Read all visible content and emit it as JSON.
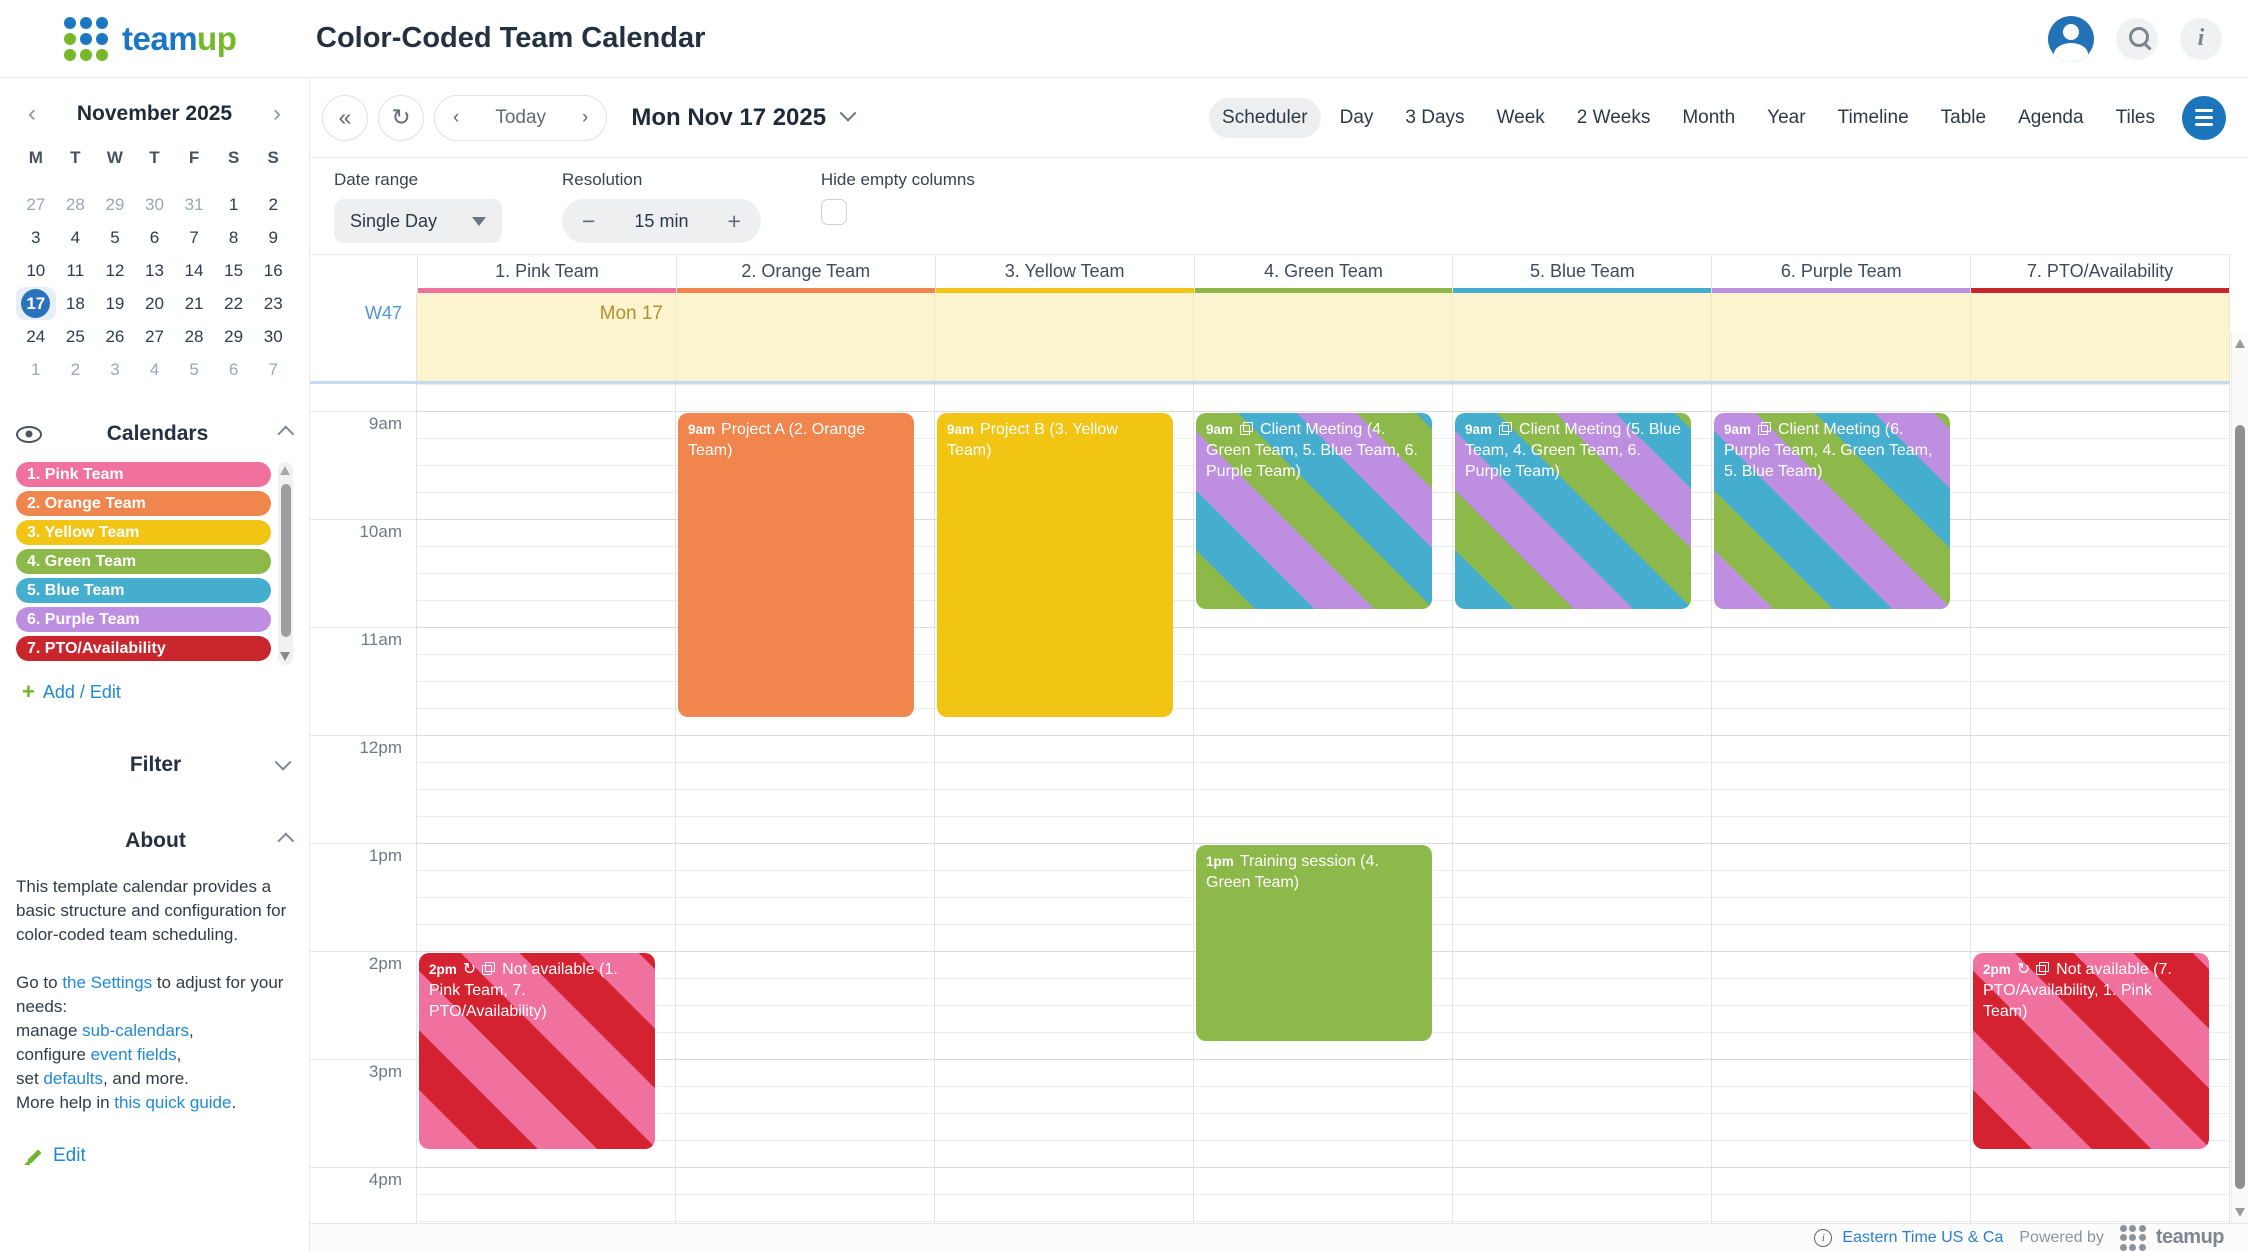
{
  "header": {
    "brand_team": "team",
    "brand_up": "up",
    "title": "Color-Coded Team Calendar"
  },
  "toolbar": {
    "today": "Today",
    "date_label": "Mon Nov 17 2025",
    "views": [
      "Scheduler",
      "Day",
      "3 Days",
      "Week",
      "2 Weeks",
      "Month",
      "Year",
      "Timeline",
      "Table",
      "Agenda",
      "Tiles"
    ],
    "active_view": "Scheduler"
  },
  "controls": {
    "date_range_label": "Date range",
    "date_range_value": "Single Day",
    "resolution_label": "Resolution",
    "resolution_value": "15 min",
    "minus": "−",
    "plus": "+",
    "hide_empty_label": "Hide empty columns",
    "hide_empty_checked": false
  },
  "mini_calendar": {
    "month": "November 2025",
    "weekdays": [
      "M",
      "T",
      "W",
      "T",
      "F",
      "S",
      "S"
    ],
    "days": [
      {
        "d": 27,
        "o": 1
      },
      {
        "d": 28,
        "o": 1
      },
      {
        "d": 29,
        "o": 1
      },
      {
        "d": 30,
        "o": 1
      },
      {
        "d": 31,
        "o": 1
      },
      {
        "d": 1
      },
      {
        "d": 2
      },
      {
        "d": 3
      },
      {
        "d": 4
      },
      {
        "d": 5
      },
      {
        "d": 6
      },
      {
        "d": 7
      },
      {
        "d": 8
      },
      {
        "d": 9
      },
      {
        "d": 10
      },
      {
        "d": 11
      },
      {
        "d": 12
      },
      {
        "d": 13
      },
      {
        "d": 14
      },
      {
        "d": 15
      },
      {
        "d": 16
      },
      {
        "d": 17,
        "s": 1
      },
      {
        "d": 18
      },
      {
        "d": 19
      },
      {
        "d": 20
      },
      {
        "d": 21
      },
      {
        "d": 22
      },
      {
        "d": 23
      },
      {
        "d": 24
      },
      {
        "d": 25
      },
      {
        "d": 26
      },
      {
        "d": 27
      },
      {
        "d": 28
      },
      {
        "d": 29
      },
      {
        "d": 30
      },
      {
        "d": 1,
        "o": 1
      },
      {
        "d": 2,
        "o": 1
      },
      {
        "d": 3,
        "o": 1
      },
      {
        "d": 4,
        "o": 1
      },
      {
        "d": 5,
        "o": 1
      },
      {
        "d": 6,
        "o": 1
      },
      {
        "d": 7,
        "o": 1
      }
    ]
  },
  "sidebar": {
    "calendars_title": "Calendars",
    "calendars": [
      {
        "name": "1. Pink Team",
        "color": "#f0709e"
      },
      {
        "name": "2. Orange Team",
        "color": "#f0854d"
      },
      {
        "name": "3. Yellow Team",
        "color": "#f2c413"
      },
      {
        "name": "4. Green Team",
        "color": "#8cb94a"
      },
      {
        "name": "5. Blue Team",
        "color": "#45aecf"
      },
      {
        "name": "6. Purple Team",
        "color": "#be8fe0"
      },
      {
        "name": "7. PTO/Availability",
        "color": "#c9252d"
      }
    ],
    "add_edit_label": "Add / Edit",
    "filter_title": "Filter",
    "about_title": "About",
    "about_p1": "This template calendar provides a basic structure and configuration for color-coded team scheduling.",
    "about_p2": [
      {
        "t": "Go to "
      },
      {
        "t": "the Settings",
        "link": true
      },
      {
        "t": " to adjust for your needs:"
      },
      {
        "br": true
      },
      {
        "t": "manage "
      },
      {
        "t": "sub-calendars",
        "link": true
      },
      {
        "t": ","
      },
      {
        "br": true
      },
      {
        "t": "configure "
      },
      {
        "t": "event fields",
        "link": true
      },
      {
        "t": ","
      },
      {
        "br": true
      },
      {
        "t": "set "
      },
      {
        "t": "defaults",
        "link": true
      },
      {
        "t": ", and more."
      },
      {
        "br": true
      },
      {
        "t": "More help in "
      },
      {
        "t": "this quick guide",
        "link": true
      },
      {
        "t": "."
      }
    ],
    "edit_label": "Edit"
  },
  "grid": {
    "week_label": "W47",
    "day_label": "Mon 17",
    "columns": [
      {
        "label": "1. Pink Team",
        "color": "#f0709e"
      },
      {
        "label": "2. Orange Team",
        "color": "#f0854d"
      },
      {
        "label": "3. Yellow Team",
        "color": "#f2c413"
      },
      {
        "label": "4. Green Team",
        "color": "#8cb94a"
      },
      {
        "label": "5. Blue Team",
        "color": "#45aecf"
      },
      {
        "label": "6. Purple Team",
        "color": "#be8fe0"
      },
      {
        "label": "7. PTO/Availability",
        "color": "#c9252d"
      }
    ],
    "times": [
      {
        "label": "9am",
        "hour": 9
      },
      {
        "label": "10am",
        "hour": 10
      },
      {
        "label": "11am",
        "hour": 11
      },
      {
        "label": "12pm",
        "hour": 12
      },
      {
        "label": "1pm",
        "hour": 13
      },
      {
        "label": "2pm",
        "hour": 14
      },
      {
        "label": "3pm",
        "hour": 15
      },
      {
        "label": "4pm",
        "hour": 16
      }
    ]
  },
  "events": [
    {
      "id": "project-a",
      "column": 1,
      "time": "9am",
      "title": "Project A (2. Orange Team)",
      "start": 9,
      "end": 12,
      "colors": [
        "#f0854d"
      ]
    },
    {
      "id": "project-b",
      "column": 2,
      "time": "9am",
      "title": "Project B (3. Yellow Team)",
      "start": 9,
      "end": 12,
      "colors": [
        "#f2c413"
      ]
    },
    {
      "id": "client-meeting-green",
      "column": 3,
      "time": "9am",
      "copy": true,
      "title": "Client Meeting (4. Green Team, 5. Blue Team, 6. Purple Team)",
      "start": 9,
      "end": 11,
      "colors": [
        "#8cb94a",
        "#45aecf",
        "#be8fe0"
      ]
    },
    {
      "id": "client-meeting-blue",
      "column": 4,
      "time": "9am",
      "copy": true,
      "title": "Client Meeting (5. Blue Team, 4. Green Team, 6. Purple Team)",
      "start": 9,
      "end": 11,
      "colors": [
        "#45aecf",
        "#8cb94a",
        "#be8fe0"
      ]
    },
    {
      "id": "client-meeting-purple",
      "column": 5,
      "time": "9am",
      "copy": true,
      "title": "Client Meeting (6. Purple Team, 4. Green Team, 5. Blue Team)",
      "start": 9,
      "end": 11,
      "colors": [
        "#be8fe0",
        "#8cb94a",
        "#45aecf"
      ]
    },
    {
      "id": "training-session",
      "column": 3,
      "time": "1pm",
      "title": "Training session (4. Green Team)",
      "start": 13,
      "end": 15,
      "colors": [
        "#8cb94a"
      ]
    },
    {
      "id": "not-available-pink",
      "column": 0,
      "time": "2pm",
      "recurring": true,
      "copy": true,
      "title": "Not available (1. Pink Team, 7. PTO/Availability)",
      "start": 14,
      "end": 16,
      "colors": [
        "#f0709e",
        "#d42230"
      ]
    },
    {
      "id": "not-available-pto",
      "column": 6,
      "time": "2pm",
      "recurring": true,
      "copy": true,
      "title": "Not available (7. PTO/Availability, 1. Pink Team)",
      "start": 14,
      "end": 16,
      "colors": [
        "#d42230",
        "#f0709e"
      ]
    }
  ],
  "footer": {
    "timezone": "Eastern Time US & Ca",
    "powered_by": "Powered by",
    "brand": "teamup"
  }
}
